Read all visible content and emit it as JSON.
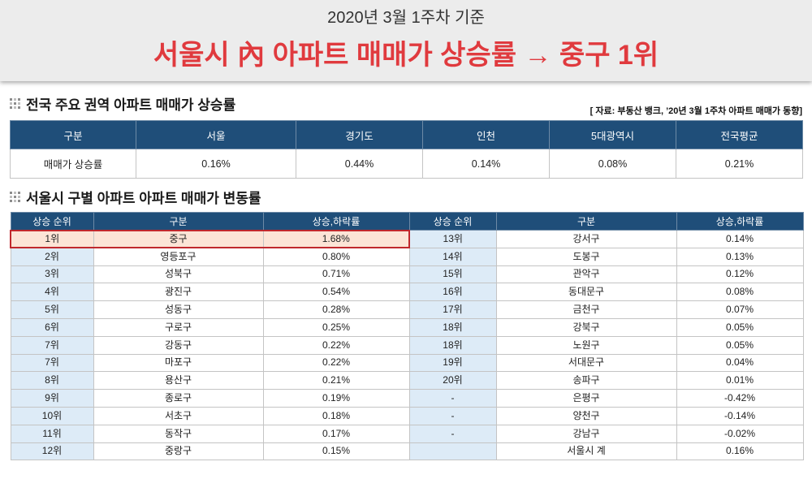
{
  "header": {
    "subtitle": "2020년 3월 1주차 기준",
    "title": "서울시 內 아파트 매매가 상승률 → 중구 1위"
  },
  "icons": {
    "section_marker": "grid-dots-icon"
  },
  "national": {
    "title": "전국 주요 권역 아파트 매매가 상승률",
    "source": "[ 자료: 부동산 뱅크, ’20년 3월 1주차 아파트 매매가 동향]",
    "columns": [
      "구분",
      "서울",
      "경기도",
      "인천",
      "5대광역시",
      "전국평균"
    ],
    "rows": [
      [
        "매매가 상승률",
        "0.16%",
        "0.44%",
        "0.14%",
        "0.08%",
        "0.21%"
      ]
    ]
  },
  "seoul": {
    "title": "서울시 구별 아파트 아파트 매매가 변동률",
    "columns": [
      "상승 순위",
      "구분",
      "상승,하락률",
      "상승 순위",
      "구분",
      "상승,하락률"
    ],
    "left": [
      {
        "rank": "1위",
        "district": "중구",
        "rate": "1.68%",
        "highlight": true
      },
      {
        "rank": "2위",
        "district": "영등포구",
        "rate": "0.80%"
      },
      {
        "rank": "3위",
        "district": "성북구",
        "rate": "0.71%"
      },
      {
        "rank": "4위",
        "district": "광진구",
        "rate": "0.54%"
      },
      {
        "rank": "5위",
        "district": "성동구",
        "rate": "0.28%"
      },
      {
        "rank": "6위",
        "district": "구로구",
        "rate": "0.25%"
      },
      {
        "rank": "7위",
        "district": "강동구",
        "rate": "0.22%"
      },
      {
        "rank": "7위",
        "district": "마포구",
        "rate": "0.22%"
      },
      {
        "rank": "8위",
        "district": "용산구",
        "rate": "0.21%"
      },
      {
        "rank": "9위",
        "district": "종로구",
        "rate": "0.19%"
      },
      {
        "rank": "10위",
        "district": "서초구",
        "rate": "0.18%"
      },
      {
        "rank": "11위",
        "district": "동작구",
        "rate": "0.17%"
      },
      {
        "rank": "12위",
        "district": "중랑구",
        "rate": "0.15%"
      }
    ],
    "right": [
      {
        "rank": "13위",
        "district": "강서구",
        "rate": "0.14%"
      },
      {
        "rank": "14위",
        "district": "도봉구",
        "rate": "0.13%"
      },
      {
        "rank": "15위",
        "district": "관악구",
        "rate": "0.12%"
      },
      {
        "rank": "16위",
        "district": "동대문구",
        "rate": "0.08%"
      },
      {
        "rank": "17위",
        "district": "금천구",
        "rate": "0.07%"
      },
      {
        "rank": "18위",
        "district": "강북구",
        "rate": "0.05%"
      },
      {
        "rank": "18위",
        "district": "노원구",
        "rate": "0.05%"
      },
      {
        "rank": "19위",
        "district": "서대문구",
        "rate": "0.04%"
      },
      {
        "rank": "20위",
        "district": "송파구",
        "rate": "0.01%"
      },
      {
        "rank": "-",
        "district": "은평구",
        "rate": "-0.42%"
      },
      {
        "rank": "-",
        "district": "양천구",
        "rate": "-0.14%"
      },
      {
        "rank": "-",
        "district": "강남구",
        "rate": "-0.02%"
      },
      {
        "rank": "",
        "district": "서울시 계",
        "rate": "0.16%"
      }
    ]
  },
  "colors": {
    "title_red": "#e03a3e",
    "header_navy": "#1f4e79",
    "rank_bg": "#ddebf7",
    "highlight_bg": "#fce4d6",
    "highlight_border": "#c0282d",
    "band_bg": "#ececec"
  }
}
